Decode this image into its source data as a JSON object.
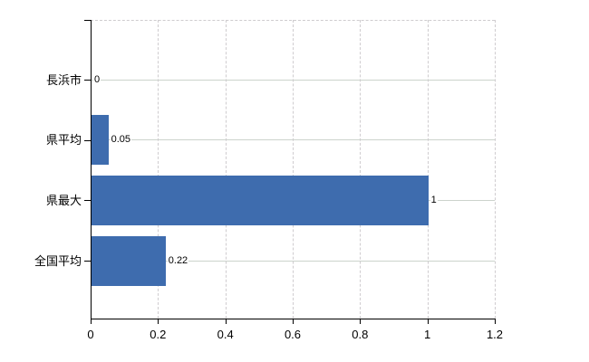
{
  "chart_data": {
    "type": "bar",
    "orientation": "horizontal",
    "title": "",
    "xlabel": "",
    "ylabel": "",
    "categories": [
      "長浜市",
      "県平均",
      "県最大",
      "全国平均"
    ],
    "values": [
      0,
      0.05,
      1,
      0.22
    ],
    "value_labels": [
      "0",
      "0.05",
      "1",
      "0.22"
    ],
    "x_ticks": [
      0,
      0.2,
      0.4,
      0.6,
      0.8,
      1,
      1.2
    ],
    "x_tick_labels": [
      "0",
      "0.2",
      "0.4",
      "0.6",
      "0.8",
      "1",
      "1.2"
    ],
    "xlim": [
      0,
      1.2
    ],
    "grid": true,
    "legend": false,
    "colors": {
      "bar": "#3e6cae",
      "gridline": "#cccccc",
      "axis": "#000000",
      "text": "#000000",
      "background": "#ffffff"
    }
  }
}
